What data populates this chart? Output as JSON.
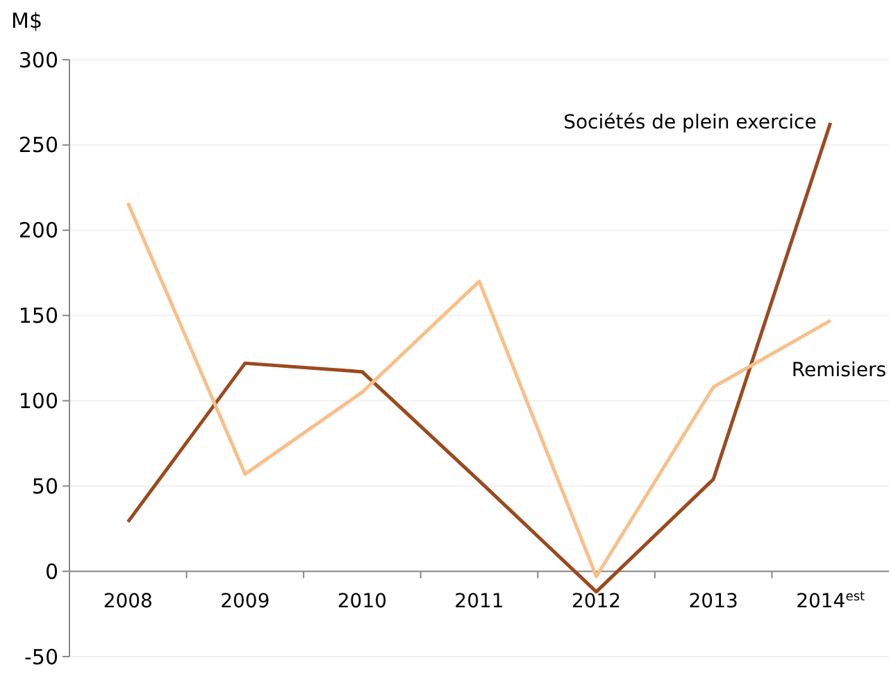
{
  "chart_data": {
    "type": "line",
    "ylabel": "M$",
    "categories": [
      "2008",
      "2009",
      "2010",
      "2011",
      "2012",
      "2013",
      "2014$^{est}$"
    ],
    "series": [
      {
        "name": "Sociétés de plein exercice",
        "color": "#9a4a1f",
        "values": [
          29,
          122,
          117,
          53,
          -12,
          54,
          263
        ]
      },
      {
        "name": "Remisiers",
        "color": "#f9bf8a",
        "values": [
          216,
          57,
          105,
          170,
          -3,
          108,
          147
        ]
      }
    ],
    "ylim": [
      -50,
      300
    ],
    "yticks": [
      -50,
      0,
      50,
      100,
      150,
      200,
      250,
      300
    ],
    "grid": "y",
    "marker": "none",
    "line_style": "solid"
  }
}
